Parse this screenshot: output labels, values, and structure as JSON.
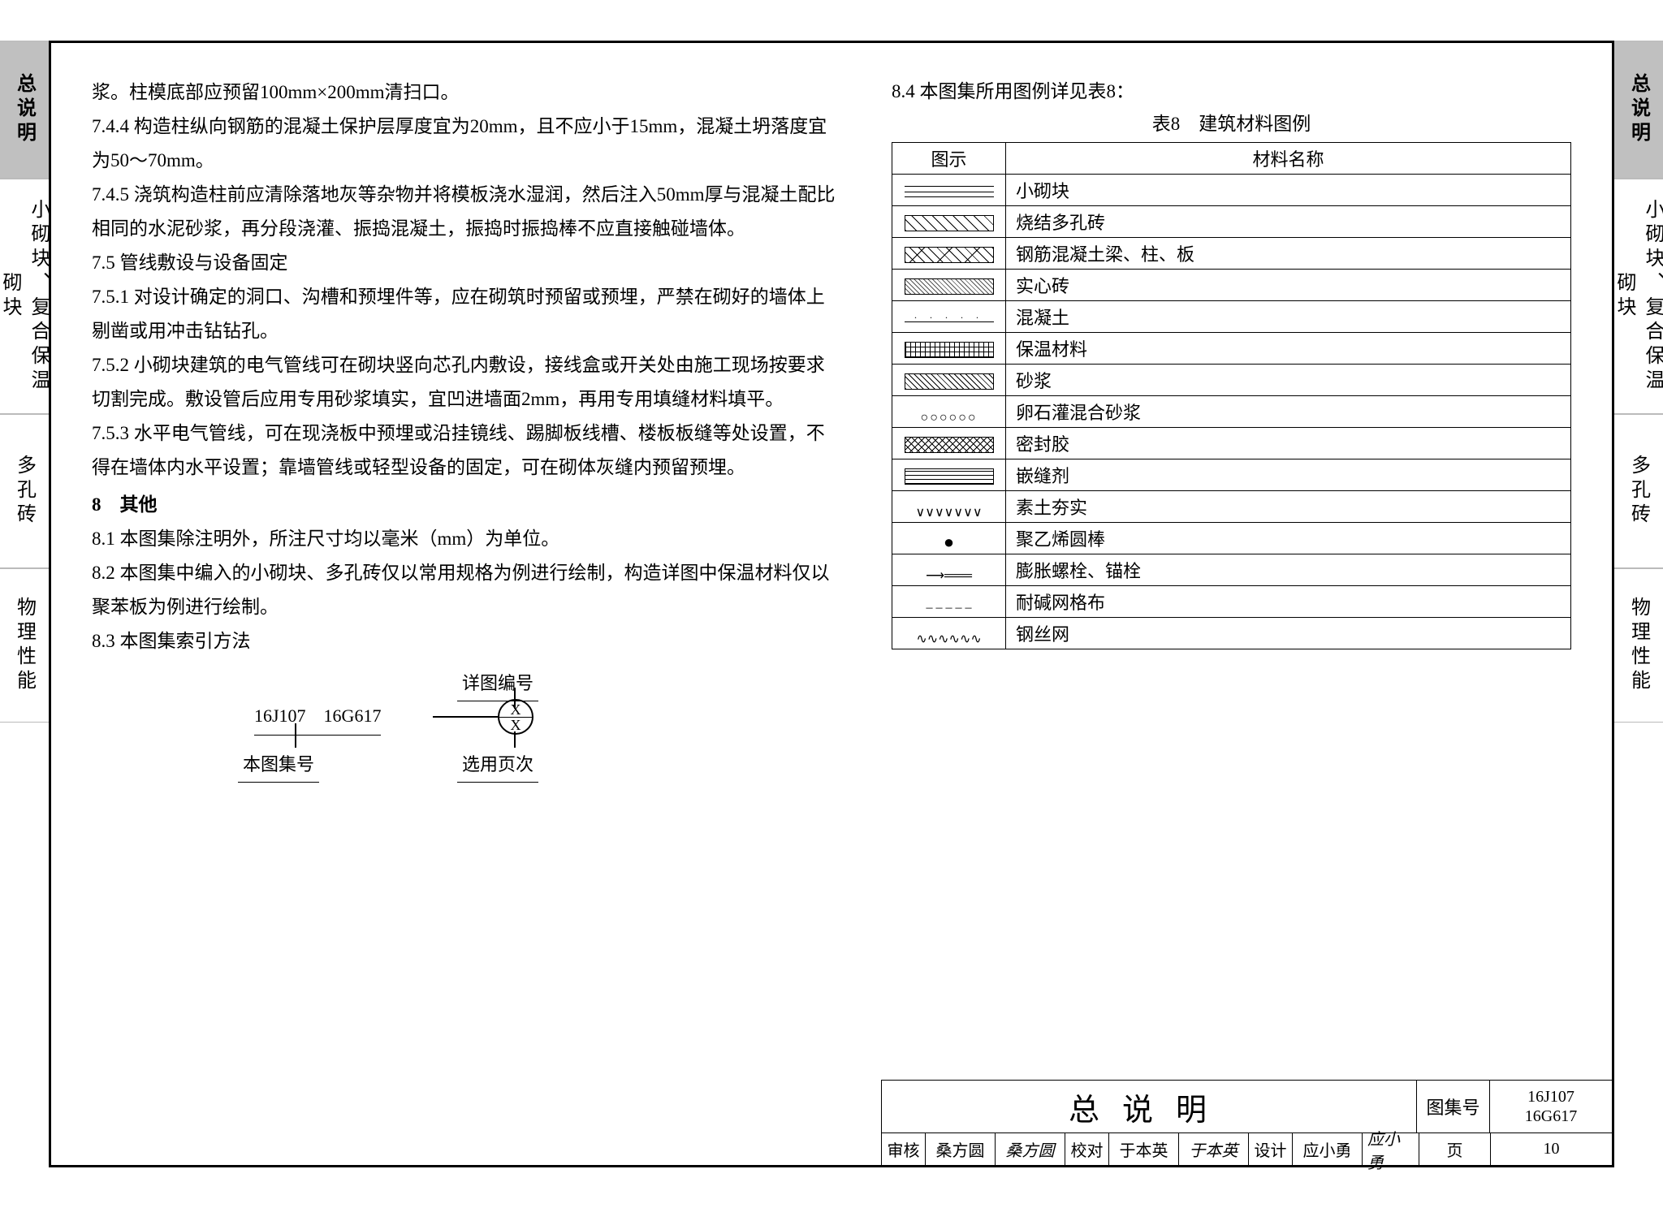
{
  "side_tabs": {
    "t1": "总说明",
    "t2": "小砌块、复合保温砌块",
    "t3": "多孔砖",
    "t4": "物理性能"
  },
  "left_col": {
    "p1": "浆。柱模底部应预留100mm×200mm清扫口。",
    "p2": "7.4.4 构造柱纵向钢筋的混凝土保护层厚度宜为20mm，且不应小于15mm，混凝土坍落度宜为50～70mm。",
    "p3": "7.4.5 浇筑构造柱前应清除落地灰等杂物并将模板浇水湿润，然后注入50mm厚与混凝土配比相同的水泥砂浆，再分段浇灌、振捣混凝土，振捣时振捣棒不应直接触碰墙体。",
    "s75": "7.5 管线敷设与设备固定",
    "p4": "7.5.1 对设计确定的洞口、沟槽和预埋件等，应在砌筑时预留或预埋，严禁在砌好的墙体上剔凿或用冲击钻钻孔。",
    "p5": "7.5.2 小砌块建筑的电气管线可在砌块竖向芯孔内敷设，接线盒或开关处由施工现场按要求切割完成。敷设管后应用专用砂浆填实，宜凹进墙面2mm，再用专用填缝材料填平。",
    "p6": "7.5.3 水平电气管线，可在现浇板中预埋或沿挂镜线、踢脚板线槽、楼板板缝等处设置，不得在墙体内水平设置；靠墙管线或轻型设备的固定，可在砌体灰缝内预留预埋。",
    "s8": "8　其他",
    "p7": "8.1 本图集除注明外，所注尺寸均以毫米（mm）为单位。",
    "p8": "8.2 本图集中编入的小砌块、多孔砖仅以常用规格为例进行绘制，构造详图中保温材料仅以聚苯板为例进行绘制。",
    "p9": "8.3 本图集索引方法"
  },
  "index_diagram": {
    "top_label": "详图编号",
    "codes": "16J107　16G617",
    "circle_top": "X",
    "circle_bot": "X",
    "bottom_label": "本图集号",
    "sel_label": "选用页次"
  },
  "right_col": {
    "heading": "8.4 本图集所用图例详见表8：",
    "table_title": "表8　建筑材料图例",
    "th_sym": "图示",
    "th_name": "材料名称",
    "rows": [
      {
        "name": "小砌块"
      },
      {
        "name": "烧结多孔砖"
      },
      {
        "name": "钢筋混凝土梁、柱、板"
      },
      {
        "name": "实心砖"
      },
      {
        "name": "混凝土"
      },
      {
        "name": "保温材料"
      },
      {
        "name": "砂浆"
      },
      {
        "name": "卵石灌混合砂浆"
      },
      {
        "name": "密封胶"
      },
      {
        "name": "嵌缝剂"
      },
      {
        "name": "素土夯实"
      },
      {
        "name": "聚乙烯圆棒"
      },
      {
        "name": "膨胀螺栓、锚栓"
      },
      {
        "name": "耐碱网格布"
      },
      {
        "name": "钢丝网"
      }
    ]
  },
  "titleblock": {
    "title": "总说明",
    "setno_lbl": "图集号",
    "setno_a": "16J107",
    "setno_b": "16G617",
    "review_lbl": "审核",
    "review_name": "桑方圆",
    "review_sig": "桑方圆",
    "check_lbl": "校对",
    "check_name": "于本英",
    "check_sig": "于本英",
    "design_lbl": "设计",
    "design_name": "应小勇",
    "design_sig": "应小勇",
    "page_lbl": "页",
    "page_no": "10"
  },
  "symbol_classes": [
    "sym-block",
    "sym-hatch",
    "sym-hatch2",
    "sym-dense",
    "sym-dots",
    "sym-grid",
    "sym-diag",
    "sym-circles",
    "sym-x",
    "sym-lines",
    "sym-zigzag",
    "sym-circle",
    "sym-anchor",
    "sym-dash",
    "sym-wave"
  ]
}
